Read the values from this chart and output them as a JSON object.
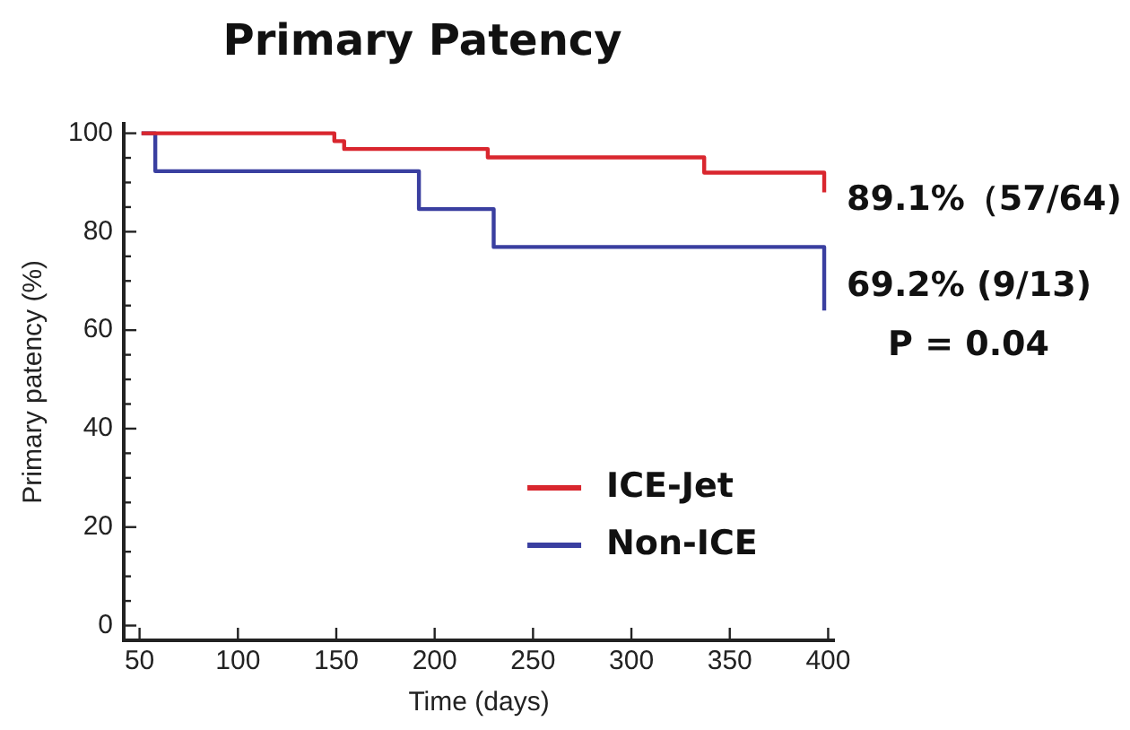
{
  "chart_data": {
    "type": "step",
    "title": "Primary Patency",
    "xlabel": "Time (days)",
    "ylabel": "Primary patency (%)",
    "series": [
      {
        "name": "ICE-Jet",
        "color": "#d9262e",
        "x": [
          51,
          149,
          154,
          227,
          337,
          398
        ],
        "values": [
          100,
          98.4,
          96.8,
          95.1,
          92,
          88
        ]
      },
      {
        "name": "Non-ICE",
        "color": "#3a3fa0",
        "x": [
          51,
          58,
          192,
          230,
          398
        ],
        "values": [
          100,
          92.3,
          84.6,
          76.9,
          64
        ]
      }
    ],
    "xlim": [
      42,
      403
    ],
    "xticks": [
      50,
      100,
      150,
      200,
      250,
      300,
      350,
      400
    ],
    "ylim": [
      -3,
      102
    ],
    "yticks": [
      0,
      {
        "value": 5,
        "label": null
      },
      {
        "value": 10,
        "label": null
      },
      {
        "value": 15,
        "label": null
      },
      20,
      {
        "value": 25,
        "label": null
      },
      {
        "value": 30,
        "label": null
      },
      {
        "value": 35,
        "label": null
      },
      40,
      {
        "value": 45,
        "label": null
      },
      {
        "value": 50,
        "label": null
      },
      {
        "value": 55,
        "label": null
      },
      60,
      {
        "value": 65,
        "label": null
      },
      {
        "value": 70,
        "label": null
      },
      {
        "value": 75,
        "label": null
      },
      80,
      {
        "value": 85,
        "label": null
      },
      {
        "value": 90,
        "label": null
      },
      {
        "value": 95,
        "label": null
      },
      100
    ],
    "annotations": [
      "89.1%（57/64)",
      "69.2% (9/13)",
      "P = 0.04"
    ],
    "grid": false,
    "legend": "bottom right",
    "marker": "none",
    "line_style": "solid"
  }
}
